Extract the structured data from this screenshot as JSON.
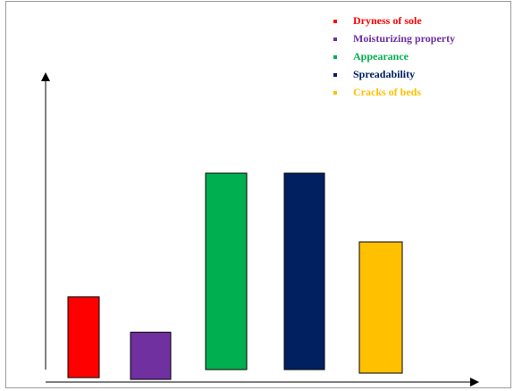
{
  "chart_data": {
    "type": "bar",
    "title": "",
    "xlabel": "",
    "ylabel": "",
    "ylim": [
      0,
      100
    ],
    "grid": false,
    "legend_position": "top-right",
    "series": [
      {
        "name": "Dryness of sole",
        "value": 37,
        "color": "#ff0000"
      },
      {
        "name": "Moisturizing property",
        "value": 19,
        "color": "#7030a0"
      },
      {
        "name": "Appearance",
        "value": 100,
        "color": "#00b050"
      },
      {
        "name": "Spreadability",
        "value": 100,
        "color": "#002060"
      },
      {
        "name": "Cracks of beds",
        "value": 65,
        "color": "#ffc000"
      }
    ]
  }
}
